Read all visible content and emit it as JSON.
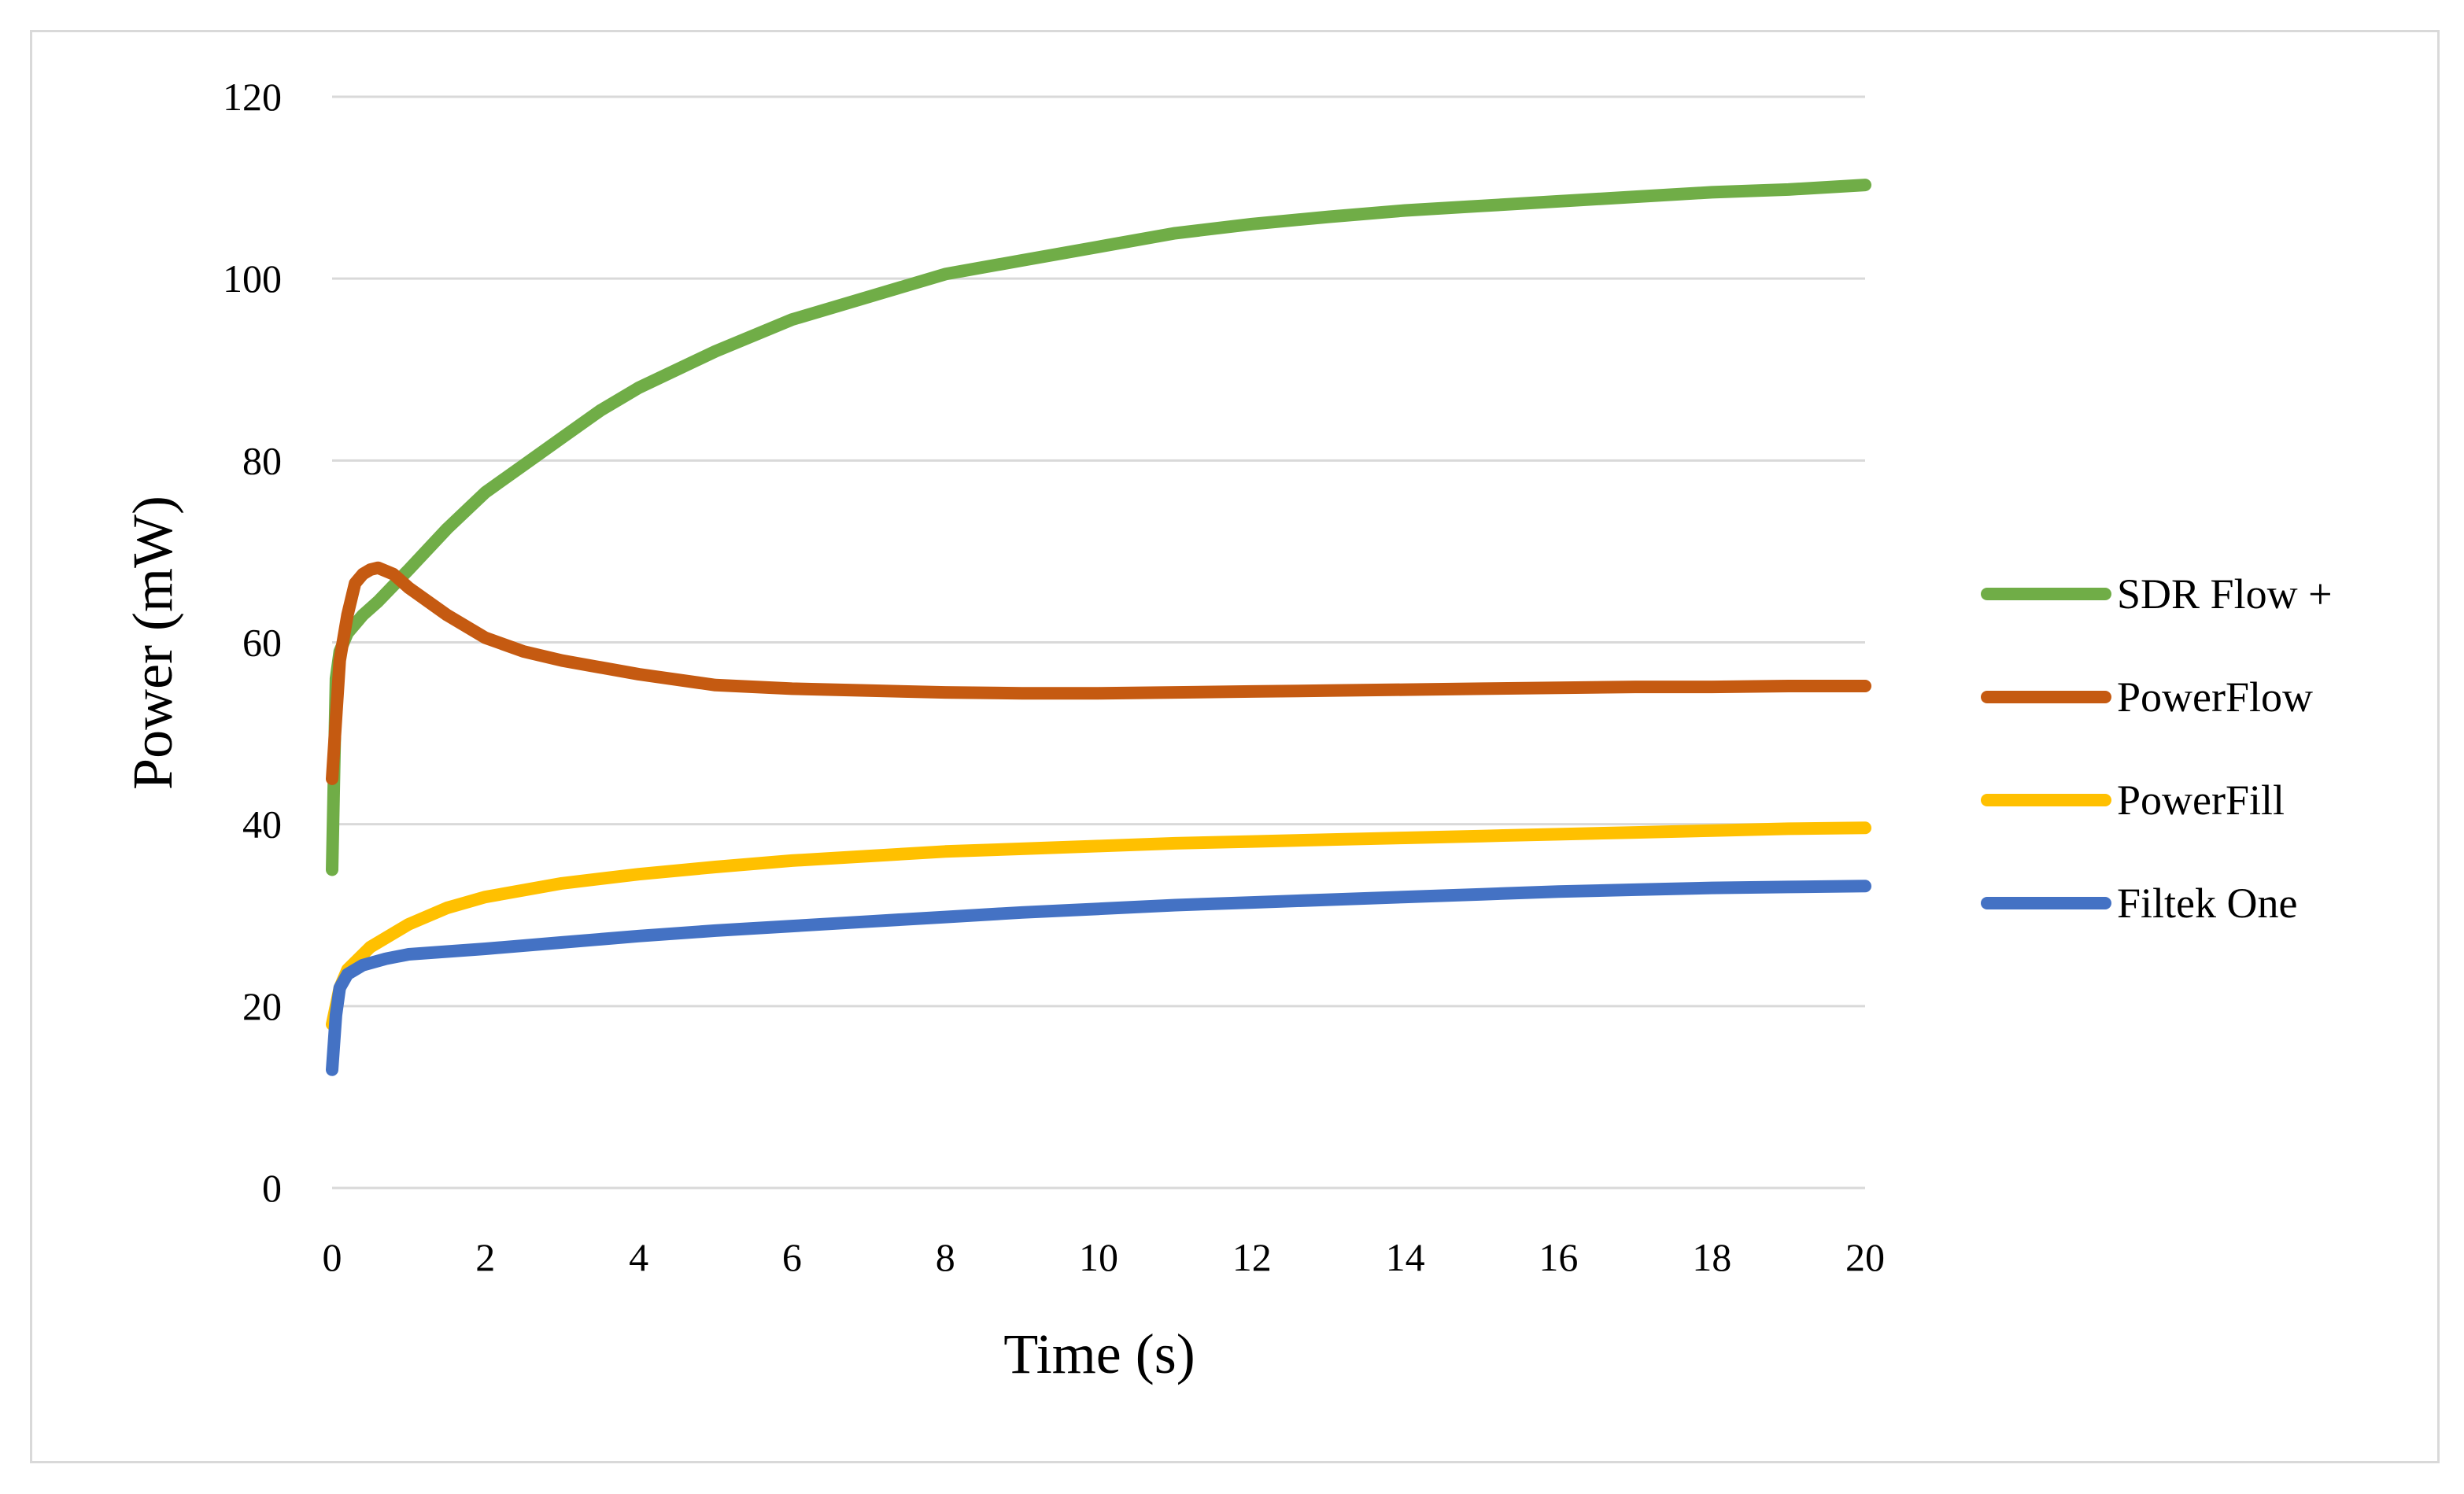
{
  "chart_data": {
    "type": "line",
    "title": "",
    "xlabel": "Time (s)",
    "ylabel": "Power (mW)",
    "xlim": [
      0,
      20
    ],
    "ylim": [
      0,
      120
    ],
    "x_ticks": [
      "0",
      "2",
      "4",
      "6",
      "8",
      "10",
      "12",
      "14",
      "16",
      "18",
      "20"
    ],
    "y_ticks": [
      "0",
      "20",
      "40",
      "60",
      "80",
      "100",
      "120"
    ],
    "grid": "horizontal",
    "legend_position": "right",
    "series": [
      {
        "name": "SDR Flow +",
        "color": "#70ad47",
        "x": [
          0,
          0.05,
          0.1,
          0.2,
          0.4,
          0.6,
          1,
          1.5,
          2,
          2.5,
          3,
          3.5,
          4,
          5,
          6,
          7,
          8,
          9,
          10,
          11,
          12,
          13,
          14,
          15,
          16,
          17,
          18,
          19,
          20
        ],
        "y": [
          35,
          56,
          59,
          61,
          63,
          64.5,
          68,
          72.5,
          76.5,
          79.5,
          82.5,
          85.5,
          88,
          92,
          95.5,
          98,
          100.5,
          102,
          103.5,
          105,
          106,
          106.8,
          107.5,
          108,
          108.5,
          109,
          109.5,
          109.8,
          110.3
        ]
      },
      {
        "name": "PowerFlow",
        "color": "#c55a11",
        "x": [
          0,
          0.1,
          0.2,
          0.3,
          0.4,
          0.5,
          0.6,
          0.8,
          1,
          1.5,
          2,
          2.5,
          3,
          4,
          5,
          6,
          7,
          8,
          9,
          10,
          11,
          12,
          13,
          14,
          15,
          16,
          17,
          18,
          19,
          20
        ],
        "y": [
          45,
          58,
          63,
          66.5,
          67.5,
          68,
          68.2,
          67.5,
          66,
          63,
          60.5,
          59,
          58,
          56.5,
          55.3,
          54.9,
          54.7,
          54.5,
          54.4,
          54.4,
          54.5,
          54.6,
          54.7,
          54.8,
          54.9,
          55,
          55.1,
          55.1,
          55.2,
          55.2
        ]
      },
      {
        "name": "PowerFill",
        "color": "#ffc000",
        "x": [
          0,
          0.1,
          0.2,
          0.5,
          1,
          1.5,
          2,
          3,
          4,
          5,
          6,
          7,
          8,
          9,
          10,
          11,
          12,
          13,
          14,
          15,
          16,
          17,
          18,
          19,
          20
        ],
        "y": [
          18,
          22,
          24,
          26.5,
          29,
          30.8,
          32,
          33.5,
          34.5,
          35.3,
          36,
          36.5,
          37,
          37.3,
          37.6,
          37.9,
          38.1,
          38.3,
          38.5,
          38.7,
          38.9,
          39.1,
          39.3,
          39.5,
          39.6
        ]
      },
      {
        "name": "Filtek One",
        "color": "#4472c4",
        "x": [
          0,
          0.05,
          0.1,
          0.2,
          0.4,
          0.7,
          1,
          2,
          3,
          4,
          5,
          6,
          7,
          8,
          9,
          10,
          11,
          12,
          13,
          14,
          15,
          16,
          17,
          18,
          19,
          20
        ],
        "y": [
          13,
          19,
          22,
          23.5,
          24.5,
          25.2,
          25.7,
          26.3,
          27,
          27.7,
          28.3,
          28.8,
          29.3,
          29.8,
          30.3,
          30.7,
          31.1,
          31.4,
          31.7,
          32,
          32.3,
          32.6,
          32.8,
          33,
          33.1,
          33.2
        ]
      }
    ]
  }
}
